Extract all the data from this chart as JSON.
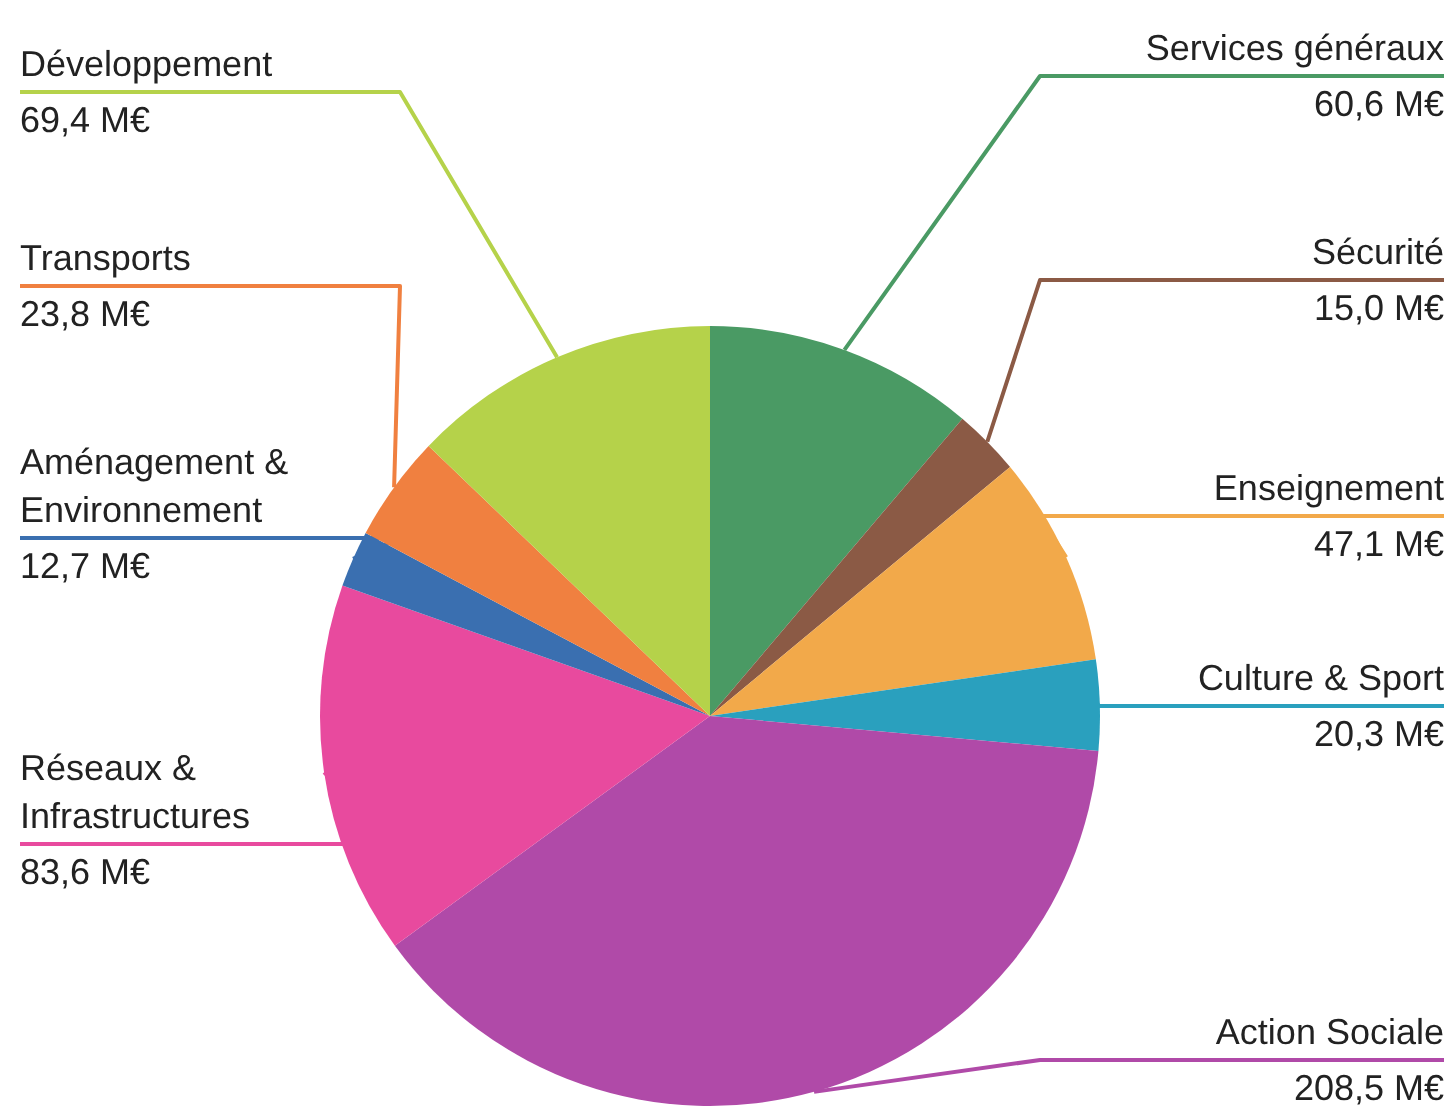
{
  "chart_data": {
    "type": "pie",
    "categories": [
      "Services généraux",
      "Sécurité",
      "Enseignement",
      "Culture & Sport",
      "Action Sociale",
      "Réseaux & Infrastructures",
      "Aménagement & Environnement",
      "Transports",
      "Développement"
    ],
    "values": [
      60.6,
      15.0,
      47.1,
      20.3,
      208.5,
      83.6,
      12.7,
      23.8,
      69.4
    ],
    "value_labels": [
      "60,6 M€",
      "15,0 M€",
      "47,1 M€",
      "20,3 M€",
      "208,5 M€",
      "83,6 M€",
      "12,7 M€",
      "23,8 M€",
      "69,4 M€"
    ],
    "colors": [
      "#4a9a64",
      "#8b5a45",
      "#f2a94a",
      "#2aa0be",
      "#b04aa8",
      "#e84a9e",
      "#3a6fb0",
      "#f08040",
      "#b5d24a"
    ]
  }
}
